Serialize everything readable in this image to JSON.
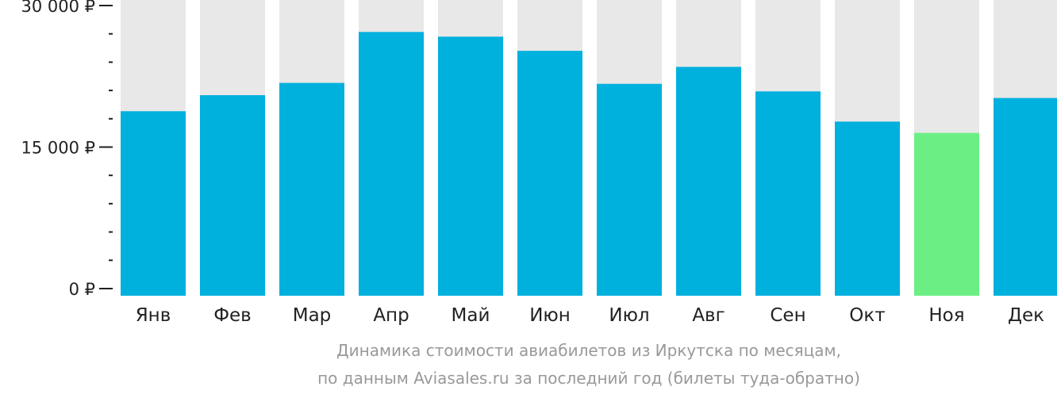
{
  "chart_data": {
    "type": "bar",
    "categories": [
      "Янв",
      "Фев",
      "Мар",
      "Апр",
      "Май",
      "Июн",
      "Июл",
      "Авг",
      "Сен",
      "Окт",
      "Ноя",
      "Дек"
    ],
    "values": [
      18800,
      20500,
      21800,
      27200,
      26700,
      25200,
      21700,
      23500,
      20900,
      17700,
      16500,
      20200
    ],
    "ylim": [
      0,
      30000
    ],
    "y_ticks": [
      {
        "value": 30000,
        "label": "30 000 ₽"
      },
      {
        "value": 15000,
        "label": "15 000 ₽"
      },
      {
        "value": 0,
        "label": "0 ₽"
      }
    ],
    "minor_tick_step": 3000,
    "highlight_index": 10,
    "colors": {
      "bar": "#00b0dd",
      "highlight": "#6bef85",
      "background_bar": "#e8e8e8",
      "axis": "#222222"
    },
    "caption_line1": "Динамика стоимости авиабилетов из Иркутска по месяцам,",
    "caption_line2": "по данным Aviasales.ru за последний год (билеты туда-обратно)"
  }
}
